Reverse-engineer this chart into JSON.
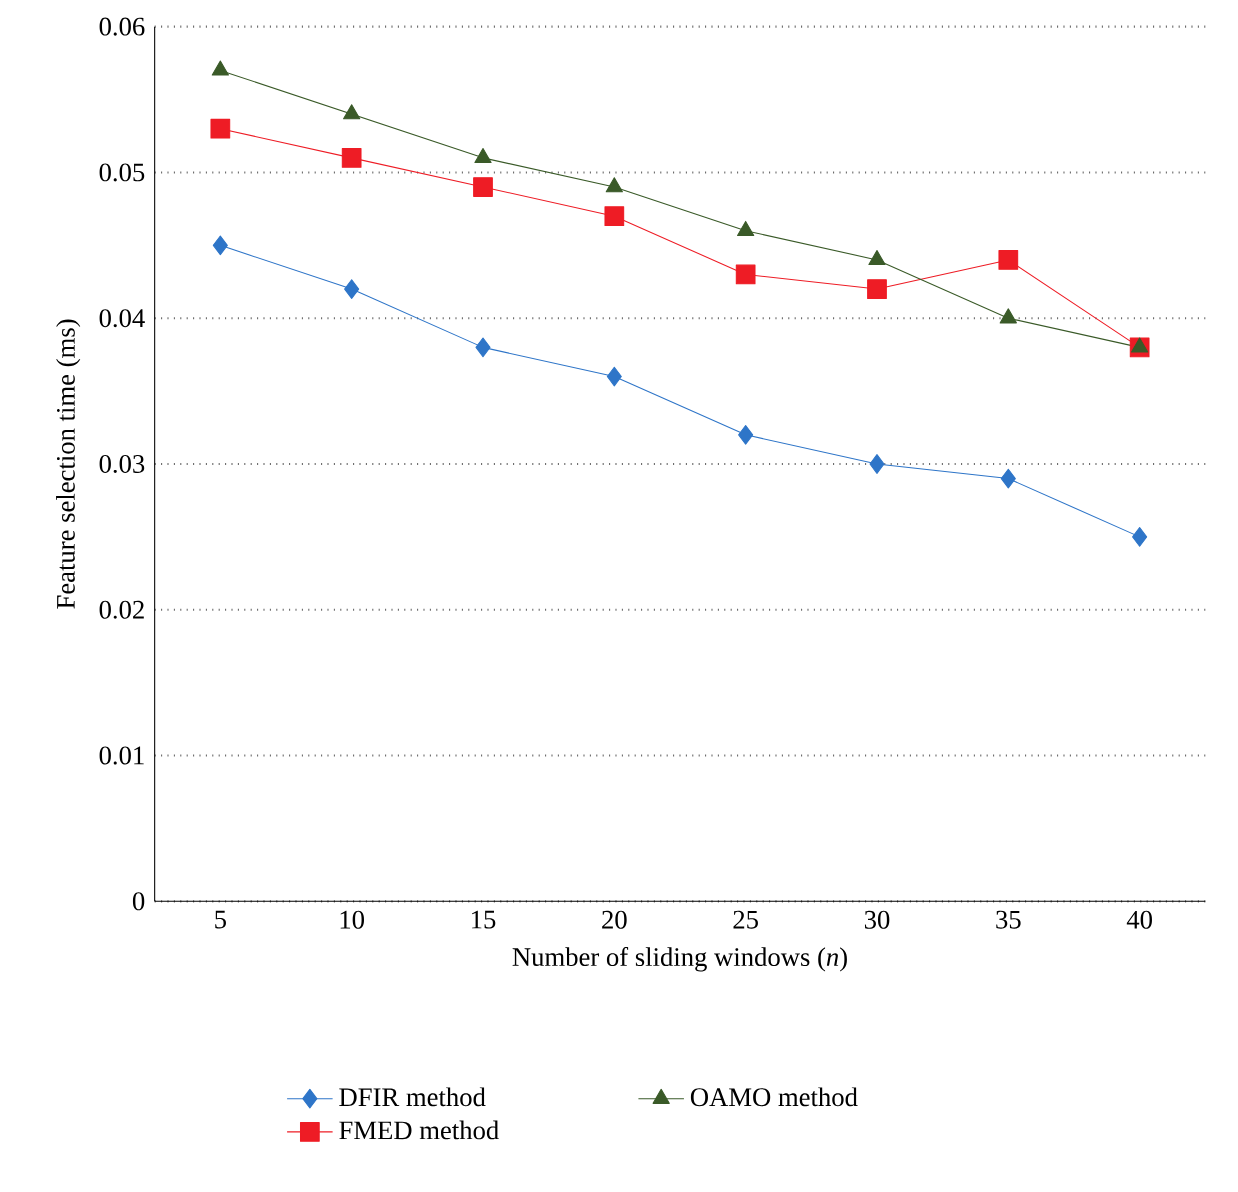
{
  "chart_data": {
    "type": "line",
    "xlabel": "Number of sliding windows (*n*)",
    "ylabel": "Feature selection time (ms)",
    "categories": [
      "5",
      "10",
      "15",
      "20",
      "25",
      "30",
      "35",
      "40"
    ],
    "series": [
      {
        "name": "DFIR method",
        "color": "#2e75c8",
        "marker": "diamond",
        "values": [
          0.045,
          0.042,
          0.038,
          0.036,
          0.032,
          0.03,
          0.029,
          0.025
        ]
      },
      {
        "name": "FMED method",
        "color": "#ee1c25",
        "marker": "square",
        "values": [
          0.053,
          0.051,
          0.049,
          0.047,
          0.043,
          0.042,
          0.044,
          0.038
        ]
      },
      {
        "name": "OAMO method",
        "color": "#3a5a28",
        "marker": "triangle",
        "values": [
          0.057,
          0.054,
          0.051,
          0.049,
          0.046,
          0.044,
          0.04,
          0.038
        ]
      }
    ],
    "ylim": [
      0,
      0.06
    ],
    "yticks": [
      0,
      0.01,
      0.02,
      0.03,
      0.04,
      0.05,
      0.06
    ],
    "grid": "y",
    "legend": "bottom",
    "line_style": "solid"
  }
}
